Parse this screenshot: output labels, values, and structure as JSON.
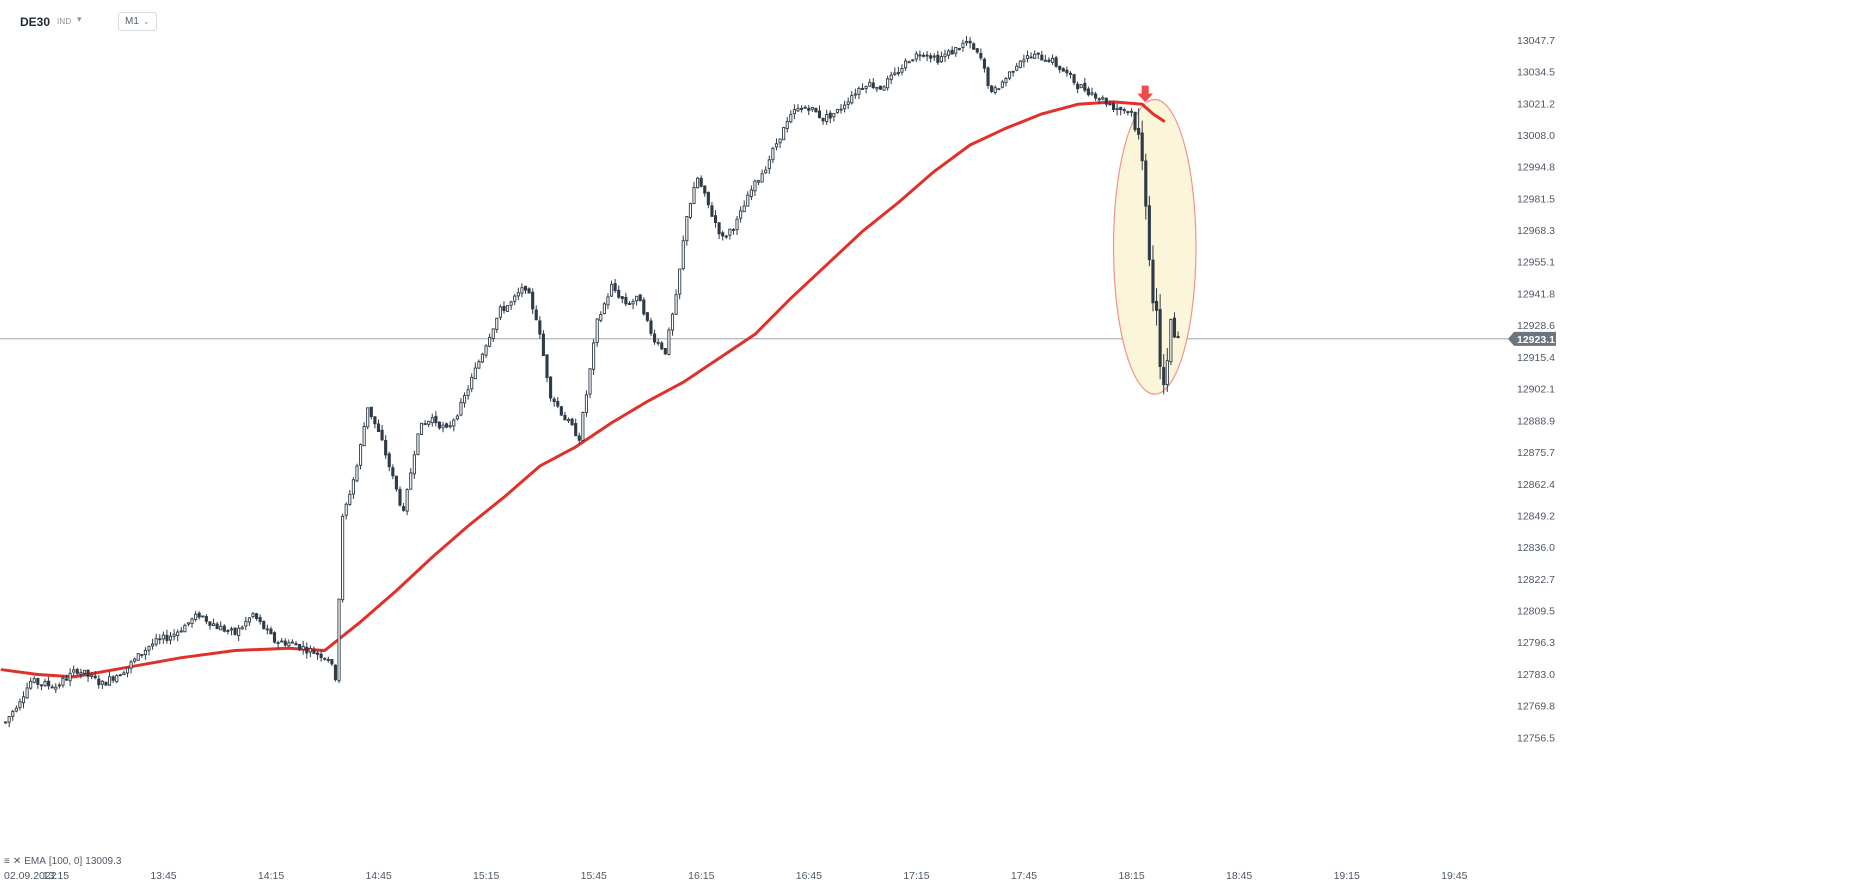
{
  "header": {
    "symbol": "DE30",
    "badge": "IND",
    "timeframe": "M1"
  },
  "indicator": {
    "label": "EMA",
    "params": "[100, 0]",
    "value": "13009.3"
  },
  "colors": {
    "ema": "#e0302a",
    "candle": "#2f3b47",
    "price_tag_bg": "#6b7580",
    "highlight_fill": "#fbf5d9",
    "highlight_stroke": "#f2938a",
    "signal_arrow": "#ef4b4b"
  },
  "icons": [
    "menu-icon",
    "close-icon",
    "caret-down-icon",
    "arrow-down-icon"
  ],
  "chart_data": {
    "type": "candlestick",
    "x_ticks": [
      "02.09.2022",
      "13:15",
      "13:45",
      "14:15",
      "14:45",
      "15:15",
      "15:45",
      "16:15",
      "16:45",
      "17:15",
      "17:45",
      "18:15",
      "18:45",
      "19:15",
      "19:45"
    ],
    "y_ticks": [
      "13047.7",
      "13034.5",
      "13021.2",
      "13008.0",
      "12994.8",
      "12981.5",
      "12968.3",
      "12955.1",
      "12941.8",
      "12928.6",
      "12915.4",
      "12902.1",
      "12888.9",
      "12875.7",
      "12862.4",
      "12849.2",
      "12836.0",
      "12822.7",
      "12809.5",
      "12796.3",
      "12783.0",
      "12769.8",
      "12756.5"
    ],
    "ylim": [
      12756.5,
      13052
    ],
    "current_price": "12923.1",
    "x_range": [
      "13:00",
      "19:55"
    ],
    "close_path": [
      [
        "13:01",
        12763
      ],
      [
        "13:08",
        12780
      ],
      [
        "13:15",
        12778
      ],
      [
        "13:21",
        12785
      ],
      [
        "13:28",
        12779
      ],
      [
        "13:35",
        12786
      ],
      [
        "13:41",
        12795
      ],
      [
        "13:48",
        12800
      ],
      [
        "13:55",
        12808
      ],
      [
        "14:00",
        12803
      ],
      [
        "14:05",
        12800
      ],
      [
        "14:10",
        12808
      ],
      [
        "14:16",
        12797
      ],
      [
        "14:21",
        12796
      ],
      [
        "14:26",
        12793
      ],
      [
        "14:31",
        12790
      ],
      [
        "14:33",
        12782
      ],
      [
        "14:35",
        12848
      ],
      [
        "14:39",
        12870
      ],
      [
        "14:42",
        12895
      ],
      [
        "14:46",
        12880
      ],
      [
        "14:50",
        12860
      ],
      [
        "14:52",
        12850
      ],
      [
        "14:56",
        12885
      ],
      [
        "15:00",
        12890
      ],
      [
        "15:04",
        12885
      ],
      [
        "15:08",
        12895
      ],
      [
        "15:12",
        12910
      ],
      [
        "15:16",
        12925
      ],
      [
        "15:19",
        12935
      ],
      [
        "15:22",
        12938
      ],
      [
        "15:26",
        12945
      ],
      [
        "15:29",
        12932
      ],
      [
        "15:33",
        12900
      ],
      [
        "15:37",
        12890
      ],
      [
        "15:41",
        12882
      ],
      [
        "15:43",
        12900
      ],
      [
        "15:46",
        12930
      ],
      [
        "15:50",
        12945
      ],
      [
        "15:54",
        12938
      ],
      [
        "15:58",
        12940
      ],
      [
        "16:01",
        12925
      ],
      [
        "16:05",
        12918
      ],
      [
        "16:08",
        12940
      ],
      [
        "16:11",
        12975
      ],
      [
        "16:14",
        12990
      ],
      [
        "16:18",
        12975
      ],
      [
        "16:21",
        12965
      ],
      [
        "16:25",
        12972
      ],
      [
        "16:29",
        12985
      ],
      [
        "16:33",
        12995
      ],
      [
        "16:37",
        13008
      ],
      [
        "16:41",
        13018
      ],
      [
        "16:45",
        13020
      ],
      [
        "16:49",
        13015
      ],
      [
        "16:53",
        13018
      ],
      [
        "16:57",
        13025
      ],
      [
        "17:01",
        13030
      ],
      [
        "17:05",
        13028
      ],
      [
        "17:09",
        13033
      ],
      [
        "17:13",
        13040
      ],
      [
        "17:17",
        13043
      ],
      [
        "17:21",
        13040
      ],
      [
        "17:25",
        13043
      ],
      [
        "17:29",
        13047
      ],
      [
        "17:33",
        13040
      ],
      [
        "17:36",
        13025
      ],
      [
        "17:40",
        13032
      ],
      [
        "17:44",
        13040
      ],
      [
        "17:48",
        13041
      ],
      [
        "17:52",
        13040
      ],
      [
        "17:56",
        13035
      ],
      [
        "18:00",
        13029
      ],
      [
        "18:05",
        13025
      ],
      [
        "18:10",
        13020
      ],
      [
        "18:15",
        13018
      ],
      [
        "18:17",
        13005
      ],
      [
        "18:19",
        12985
      ],
      [
        "18:21",
        12940
      ],
      [
        "18:23",
        12915
      ],
      [
        "18:24",
        12905
      ],
      [
        "18:25",
        12918
      ],
      [
        "18:26",
        12930
      ],
      [
        "18:27",
        12924
      ],
      [
        "18:28",
        12923
      ]
    ],
    "series": [
      {
        "name": "EMA",
        "type": "line",
        "values": [
          [
            "13:00",
            12785
          ],
          [
            "13:10",
            12783
          ],
          [
            "13:20",
            12782
          ],
          [
            "13:35",
            12786
          ],
          [
            "13:50",
            12790
          ],
          [
            "14:05",
            12793
          ],
          [
            "14:20",
            12794
          ],
          [
            "14:30",
            12793
          ],
          [
            "14:40",
            12805
          ],
          [
            "14:50",
            12818
          ],
          [
            "15:00",
            12832
          ],
          [
            "15:10",
            12845
          ],
          [
            "15:20",
            12857
          ],
          [
            "15:30",
            12870
          ],
          [
            "15:40",
            12878
          ],
          [
            "15:50",
            12888
          ],
          [
            "16:00",
            12897
          ],
          [
            "16:10",
            12905
          ],
          [
            "16:20",
            12915
          ],
          [
            "16:30",
            12925
          ],
          [
            "16:40",
            12940
          ],
          [
            "16:50",
            12954
          ],
          [
            "17:00",
            12968
          ],
          [
            "17:10",
            12980
          ],
          [
            "17:20",
            12993
          ],
          [
            "17:30",
            13004
          ],
          [
            "17:40",
            13011
          ],
          [
            "17:50",
            13017
          ],
          [
            "18:00",
            13021
          ],
          [
            "18:10",
            13022
          ],
          [
            "18:18",
            13021
          ],
          [
            "18:21",
            13017
          ],
          [
            "18:24",
            13014
          ]
        ]
      }
    ],
    "annotations": [
      {
        "type": "ellipse",
        "x_range": [
          "18:10",
          "18:33"
        ],
        "y_range": [
          12900,
          13023
        ]
      },
      {
        "type": "arrow-down",
        "time": "18:18",
        "price": 13024
      }
    ]
  }
}
